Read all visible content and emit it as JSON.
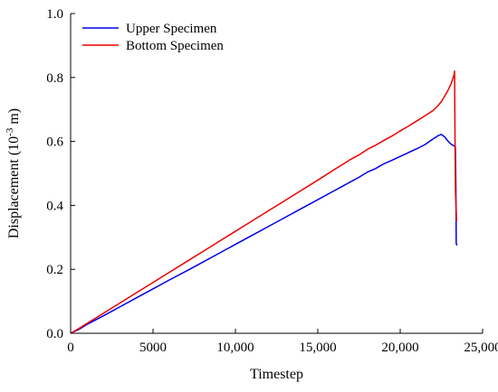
{
  "chart_data": {
    "type": "line",
    "title": "",
    "xlabel": "Timestep",
    "ylabel": {
      "base": "Displacement (10",
      "sup": "-3",
      "tail": " m)"
    },
    "xlim": [
      0,
      25000
    ],
    "ylim": [
      0.0,
      1.0
    ],
    "x_ticks": [
      0,
      5000,
      10000,
      15000,
      20000,
      25000
    ],
    "x_tick_labels": [
      "0",
      "5000",
      "10,000",
      "15,000",
      "20,000",
      "25,000"
    ],
    "y_ticks": [
      0.0,
      0.2,
      0.4,
      0.6,
      0.8,
      1.0
    ],
    "y_tick_labels": [
      "0.0",
      "0.2",
      "0.4",
      "0.6",
      "0.8",
      "1.0"
    ],
    "grid": false,
    "legend": "top-left",
    "series": [
      {
        "name": "Upper Specimen",
        "color": "#0000ee",
        "points": [
          [
            0,
            0.0
          ],
          [
            500,
            0.012
          ],
          [
            1000,
            0.028
          ],
          [
            2000,
            0.055
          ],
          [
            3000,
            0.083
          ],
          [
            4000,
            0.111
          ],
          [
            5000,
            0.139
          ],
          [
            6000,
            0.167
          ],
          [
            7000,
            0.194
          ],
          [
            8000,
            0.222
          ],
          [
            9000,
            0.25
          ],
          [
            10000,
            0.278
          ],
          [
            11000,
            0.306
          ],
          [
            12000,
            0.334
          ],
          [
            13000,
            0.362
          ],
          [
            14000,
            0.39
          ],
          [
            15000,
            0.418
          ],
          [
            16000,
            0.446
          ],
          [
            16500,
            0.46
          ],
          [
            17000,
            0.474
          ],
          [
            17500,
            0.488
          ],
          [
            18000,
            0.504
          ],
          [
            18500,
            0.515
          ],
          [
            19000,
            0.53
          ],
          [
            19500,
            0.541
          ],
          [
            20000,
            0.553
          ],
          [
            20500,
            0.565
          ],
          [
            21000,
            0.577
          ],
          [
            21500,
            0.59
          ],
          [
            22000,
            0.608
          ],
          [
            22300,
            0.618
          ],
          [
            22500,
            0.622
          ],
          [
            22700,
            0.614
          ],
          [
            22900,
            0.601
          ],
          [
            23100,
            0.591
          ],
          [
            23300,
            0.585
          ],
          [
            23350,
            0.583
          ],
          [
            23380,
            0.45
          ],
          [
            23400,
            0.28
          ],
          [
            23450,
            0.275
          ]
        ]
      },
      {
        "name": "Bottom Specimen",
        "color": "#ee0000",
        "points": [
          [
            0,
            0.0
          ],
          [
            500,
            0.015
          ],
          [
            1000,
            0.031
          ],
          [
            2000,
            0.063
          ],
          [
            3000,
            0.095
          ],
          [
            4000,
            0.127
          ],
          [
            5000,
            0.159
          ],
          [
            6000,
            0.191
          ],
          [
            7000,
            0.223
          ],
          [
            8000,
            0.255
          ],
          [
            9000,
            0.287
          ],
          [
            10000,
            0.319
          ],
          [
            11000,
            0.351
          ],
          [
            12000,
            0.383
          ],
          [
            13000,
            0.415
          ],
          [
            14000,
            0.447
          ],
          [
            15000,
            0.479
          ],
          [
            16000,
            0.512
          ],
          [
            16500,
            0.528
          ],
          [
            17000,
            0.544
          ],
          [
            17500,
            0.558
          ],
          [
            18000,
            0.575
          ],
          [
            18500,
            0.588
          ],
          [
            19000,
            0.603
          ],
          [
            19500,
            0.617
          ],
          [
            20000,
            0.633
          ],
          [
            20500,
            0.648
          ],
          [
            21000,
            0.664
          ],
          [
            21500,
            0.68
          ],
          [
            22000,
            0.697
          ],
          [
            22300,
            0.712
          ],
          [
            22500,
            0.725
          ],
          [
            22700,
            0.742
          ],
          [
            22900,
            0.76
          ],
          [
            23100,
            0.782
          ],
          [
            23250,
            0.805
          ],
          [
            23300,
            0.82
          ],
          [
            23320,
            0.65
          ],
          [
            23350,
            0.45
          ],
          [
            23420,
            0.35
          ]
        ]
      }
    ]
  }
}
